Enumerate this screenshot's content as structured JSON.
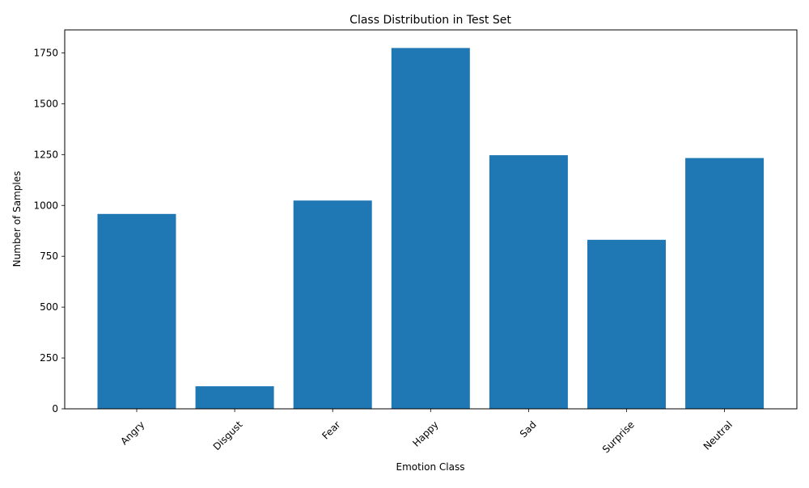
{
  "chart_data": {
    "type": "bar",
    "title": "Class Distribution in Test Set",
    "xlabel": "Emotion Class",
    "ylabel": "Number of Samples",
    "categories": [
      "Angry",
      "Disgust",
      "Fear",
      "Happy",
      "Sad",
      "Surprise",
      "Neutral"
    ],
    "values": [
      958,
      111,
      1024,
      1774,
      1247,
      831,
      1233
    ],
    "ylim": [
      0,
      1863
    ],
    "yticks": [
      0,
      250,
      500,
      750,
      1000,
      1250,
      1500,
      1750
    ],
    "grid": false,
    "legend": "none",
    "bar_color": "#1f77b4",
    "xtick_rotation": 45
  }
}
